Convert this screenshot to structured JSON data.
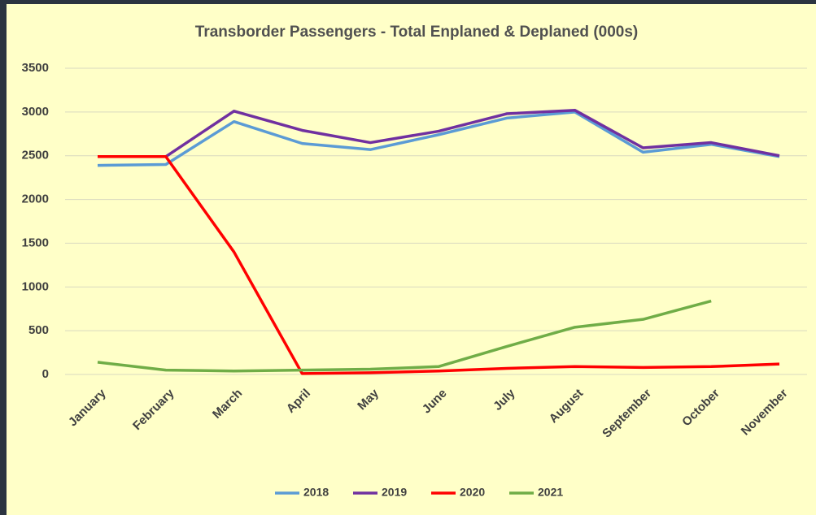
{
  "chart_data": {
    "type": "line",
    "title": "Transborder Passengers - Total Enplaned & Deplaned (000s)",
    "categories": [
      "January",
      "February",
      "March",
      "April",
      "May",
      "June",
      "July",
      "August",
      "September",
      "October",
      "November"
    ],
    "series": [
      {
        "name": "2018",
        "color": "#5b9bd5",
        "values": [
          2390,
          2400,
          2890,
          2640,
          2570,
          2740,
          2930,
          3000,
          2540,
          2630,
          2490
        ]
      },
      {
        "name": "2019",
        "color": "#7030a0",
        "values": [
          2490,
          2490,
          3010,
          2790,
          2650,
          2780,
          2980,
          3020,
          2590,
          2650,
          2500
        ]
      },
      {
        "name": "2020",
        "color": "#ff0000",
        "values": [
          2490,
          2490,
          1400,
          10,
          20,
          40,
          70,
          90,
          80,
          90,
          120
        ]
      },
      {
        "name": "2021",
        "color": "#70ad47",
        "values": [
          140,
          50,
          40,
          50,
          60,
          90,
          320,
          540,
          630,
          840,
          null
        ]
      }
    ],
    "ylim": [
      0,
      3500
    ],
    "yticks": [
      0,
      500,
      1000,
      1500,
      2000,
      2500,
      3000,
      3500
    ],
    "grid": true,
    "legend": "bottom"
  }
}
